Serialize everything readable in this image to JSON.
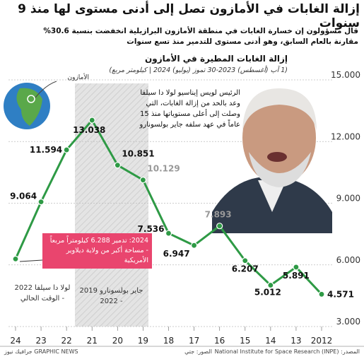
{
  "chart_data": {
    "type": "line",
    "title": "إزالة الغابات في الأمازون تصل إلى أدنى مستوى لها منذ 9 سنوات",
    "subtitle": "قال مسؤولون إن خسارة الغابات في منطقة الأمازون البرازيلية انخفضت بنسبة 30.6% مقارنة بالعام السابق، وهو أدنى مستوى للتدمير منذ تسع سنوات",
    "chart_title": "إزالة الغابات المطيرة في الأمازون",
    "chart_subtitle": "(1 آب (أغسطس) 2023-30 تموز (يوليو) 2024 | كيلومتر مربع)",
    "categories": [
      "2012",
      "13",
      "14",
      "15",
      "16",
      "17",
      "18",
      "19",
      "20",
      "21",
      "22",
      "23",
      "24"
    ],
    "x_reversed": true,
    "series": [
      {
        "name": "إزالة الغابات المطيرة في الأمازون",
        "color": "#2e9a45",
        "values": [
          4571,
          5891,
          5012,
          6207,
          7893,
          6947,
          7536,
          10129,
          10851,
          13038,
          11594,
          9064,
          6288
        ],
        "value_labels": [
          "4.571",
          "5.891",
          "5.012",
          "6.207",
          "7.893",
          "6.947",
          "7.536",
          "10.129",
          "10.851",
          "13.038",
          "11.594",
          "9.064",
          null
        ]
      }
    ],
    "ylim": [
      3000,
      15000
    ],
    "yticks": [
      {
        "value": 3000,
        "label": "3.000"
      },
      {
        "value": 6000,
        "label": "6.000"
      },
      {
        "value": 9000,
        "label": "9.000"
      },
      {
        "value": 12000,
        "label": "12.000"
      },
      {
        "value": 15000,
        "label": "15.000"
      }
    ],
    "grid": true,
    "annotations": {
      "latest": "2024: تدمير 6.288 كيلومتراً مربعاً - مساحة أكبر من ولاية ديلاوير الأمريكية",
      "lula_quote": "الرئيس لويس إيناسيو لولا دا سيلفا وعد بالحد من إزالة الغابات، التي وصلت إلى أعلى مستوياتها منذ 15 عاماً في عهد سلفه جاير بولسونارو",
      "globe_label": "الأمازون",
      "lula_period": "لولا دا سيلفا 2022 - الوقت الحالي",
      "bolsonaro_period": "جاير بولسونارو 2019 - 2022"
    },
    "footer": {
      "source": "المصدر: National Institute for Space Research (INPE)",
      "photos": "الصور: جتي",
      "credit": "GRAPHIC NEWS جرافيك نيوز"
    }
  }
}
